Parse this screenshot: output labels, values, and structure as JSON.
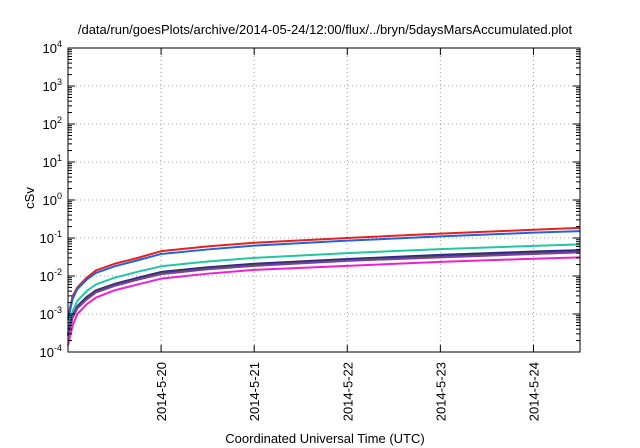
{
  "chart_data": {
    "type": "line",
    "title": "/data/run/goesPlots/archive/2014-05-24/12:00/flux/../bryn/5daysMarsAccumulated.plot",
    "xlabel": "Coordinated Universal Time (UTC)",
    "ylabel": "cSv",
    "x_range_days": [
      19.0,
      24.5
    ],
    "x_tick_labels": [
      "2014-5-20",
      "2014-5-21",
      "2014-5-22",
      "2014-5-23",
      "2014-5-24"
    ],
    "x_ticks": [
      20,
      21,
      22,
      23,
      24
    ],
    "y_scale": "log",
    "ylim": [
      0.0001,
      10000
    ],
    "y_tick_labels": [
      {
        "base": "10",
        "exp": "4"
      },
      {
        "base": "10",
        "exp": "3"
      },
      {
        "base": "10",
        "exp": "2"
      },
      {
        "base": "10",
        "exp": "1"
      },
      {
        "base": "10",
        "exp": "0"
      },
      {
        "base": "10",
        "exp": "-1"
      },
      {
        "base": "10",
        "exp": "-2"
      },
      {
        "base": "10",
        "exp": "-3"
      },
      {
        "base": "10",
        "exp": "-4"
      }
    ],
    "y_ticks": [
      10000,
      1000,
      100,
      10,
      1,
      0.1,
      0.01,
      0.001,
      0.0001
    ],
    "grid": true,
    "series": [
      {
        "color": "#e8201c",
        "x": [
          19.0,
          19.05,
          19.1,
          19.2,
          19.3,
          19.5,
          19.75,
          20.0,
          20.5,
          21.0,
          22.0,
          23.0,
          24.0,
          24.5
        ],
        "y": [
          0.0008,
          0.003,
          0.005,
          0.009,
          0.014,
          0.021,
          0.03,
          0.045,
          0.06,
          0.075,
          0.1,
          0.13,
          0.165,
          0.185
        ]
      },
      {
        "color": "#1f63e0",
        "x": [
          19.0,
          19.05,
          19.1,
          19.2,
          19.3,
          19.5,
          19.75,
          20.0,
          20.5,
          21.0,
          22.0,
          23.0,
          24.0,
          24.5
        ],
        "y": [
          0.0007,
          0.0025,
          0.0045,
          0.008,
          0.012,
          0.018,
          0.026,
          0.038,
          0.05,
          0.063,
          0.085,
          0.11,
          0.138,
          0.152
        ]
      },
      {
        "color": "#1fc8a0",
        "x": [
          19.0,
          19.05,
          19.1,
          19.2,
          19.3,
          19.5,
          19.75,
          20.0,
          20.5,
          21.0,
          22.0,
          23.0,
          24.0,
          24.5
        ],
        "y": [
          0.0004,
          0.0012,
          0.0022,
          0.004,
          0.006,
          0.009,
          0.013,
          0.018,
          0.024,
          0.03,
          0.04,
          0.051,
          0.062,
          0.068
        ]
      },
      {
        "color": "#2a2a8a",
        "x": [
          19.0,
          19.05,
          19.1,
          19.2,
          19.3,
          19.5,
          19.75,
          20.0,
          20.5,
          21.0,
          22.0,
          23.0,
          24.0,
          24.5
        ],
        "y": [
          0.0003,
          0.0009,
          0.0016,
          0.0028,
          0.0042,
          0.0062,
          0.009,
          0.0128,
          0.017,
          0.021,
          0.028,
          0.036,
          0.044,
          0.048
        ]
      },
      {
        "color": "#444444",
        "x": [
          19.0,
          19.05,
          19.1,
          19.2,
          19.3,
          19.5,
          19.75,
          20.0,
          20.5,
          21.0,
          22.0,
          23.0,
          24.0,
          24.5
        ],
        "y": [
          0.00028,
          0.00085,
          0.0015,
          0.0026,
          0.004,
          0.0058,
          0.0085,
          0.012,
          0.016,
          0.0195,
          0.026,
          0.033,
          0.04,
          0.044
        ]
      },
      {
        "color": "#7b3fa8",
        "x": [
          19.0,
          19.05,
          19.1,
          19.2,
          19.3,
          19.5,
          19.75,
          20.0,
          20.5,
          21.0,
          22.0,
          23.0,
          24.0,
          24.5
        ],
        "y": [
          0.00026,
          0.0008,
          0.0014,
          0.0024,
          0.0037,
          0.0055,
          0.008,
          0.0112,
          0.015,
          0.0185,
          0.025,
          0.031,
          0.038,
          0.042
        ]
      },
      {
        "color": "#ee1fd0",
        "x": [
          19.0,
          19.05,
          19.1,
          19.2,
          19.3,
          19.5,
          19.75,
          20.0,
          20.5,
          21.0,
          22.0,
          23.0,
          24.0,
          24.5
        ],
        "y": [
          0.00015,
          0.0005,
          0.001,
          0.0018,
          0.0027,
          0.0042,
          0.006,
          0.0085,
          0.0115,
          0.0145,
          0.0185,
          0.0235,
          0.0285,
          0.031
        ]
      }
    ]
  }
}
